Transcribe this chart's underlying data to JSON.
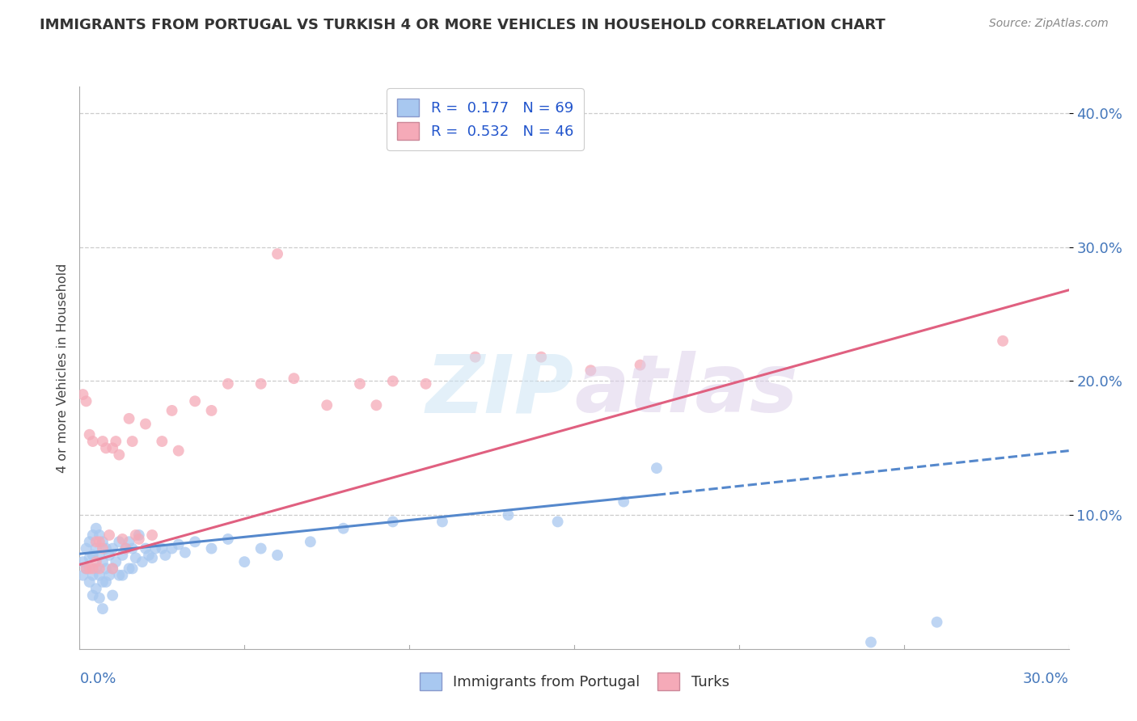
{
  "title": "IMMIGRANTS FROM PORTUGAL VS TURKISH 4 OR MORE VEHICLES IN HOUSEHOLD CORRELATION CHART",
  "source": "Source: ZipAtlas.com",
  "ylabel": "4 or more Vehicles in Household",
  "color_portugal": "#a8c8f0",
  "color_turks": "#f5aab8",
  "trend_portugal": "#5588cc",
  "trend_turks": "#e06080",
  "legend_r1": "R =  0.177   N = 69",
  "legend_r2": "R =  0.532   N = 46",
  "legend_label1": "Immigrants from Portugal",
  "legend_label2": "Turks",
  "xlim": [
    0.0,
    0.3
  ],
  "ylim": [
    0.0,
    0.42
  ],
  "trend_p_x0": 0.0,
  "trend_p_y0": 0.071,
  "trend_p_x1": 0.175,
  "trend_p_y1": 0.115,
  "trend_p_dash_x1": 0.3,
  "trend_p_dash_y1": 0.148,
  "trend_t_x0": 0.0,
  "trend_t_y0": 0.063,
  "trend_t_x1": 0.3,
  "trend_t_y1": 0.268,
  "portugal_x": [
    0.001,
    0.001,
    0.002,
    0.002,
    0.003,
    0.003,
    0.003,
    0.004,
    0.004,
    0.004,
    0.004,
    0.005,
    0.005,
    0.005,
    0.005,
    0.006,
    0.006,
    0.006,
    0.006,
    0.007,
    0.007,
    0.007,
    0.007,
    0.008,
    0.008,
    0.008,
    0.009,
    0.009,
    0.01,
    0.01,
    0.01,
    0.011,
    0.012,
    0.012,
    0.013,
    0.013,
    0.014,
    0.015,
    0.015,
    0.016,
    0.016,
    0.017,
    0.018,
    0.019,
    0.02,
    0.021,
    0.022,
    0.023,
    0.025,
    0.026,
    0.028,
    0.03,
    0.032,
    0.035,
    0.04,
    0.045,
    0.05,
    0.055,
    0.06,
    0.07,
    0.08,
    0.095,
    0.11,
    0.13,
    0.145,
    0.165,
    0.175,
    0.24,
    0.26
  ],
  "portugal_y": [
    0.065,
    0.055,
    0.075,
    0.06,
    0.08,
    0.068,
    0.05,
    0.085,
    0.07,
    0.055,
    0.04,
    0.09,
    0.075,
    0.06,
    0.045,
    0.085,
    0.07,
    0.055,
    0.038,
    0.08,
    0.065,
    0.05,
    0.03,
    0.075,
    0.06,
    0.05,
    0.07,
    0.055,
    0.075,
    0.06,
    0.04,
    0.065,
    0.08,
    0.055,
    0.07,
    0.055,
    0.075,
    0.08,
    0.06,
    0.075,
    0.06,
    0.068,
    0.085,
    0.065,
    0.075,
    0.07,
    0.068,
    0.075,
    0.075,
    0.07,
    0.075,
    0.078,
    0.072,
    0.08,
    0.075,
    0.082,
    0.065,
    0.075,
    0.07,
    0.08,
    0.09,
    0.095,
    0.095,
    0.1,
    0.095,
    0.11,
    0.135,
    0.005,
    0.02
  ],
  "turks_x": [
    0.001,
    0.002,
    0.002,
    0.003,
    0.003,
    0.004,
    0.004,
    0.005,
    0.005,
    0.006,
    0.006,
    0.007,
    0.007,
    0.008,
    0.009,
    0.01,
    0.01,
    0.011,
    0.012,
    0.013,
    0.014,
    0.015,
    0.016,
    0.017,
    0.018,
    0.02,
    0.022,
    0.025,
    0.028,
    0.03,
    0.035,
    0.04,
    0.045,
    0.055,
    0.06,
    0.065,
    0.075,
    0.085,
    0.09,
    0.095,
    0.105,
    0.12,
    0.14,
    0.155,
    0.17,
    0.28
  ],
  "turks_y": [
    0.19,
    0.185,
    0.06,
    0.16,
    0.06,
    0.155,
    0.06,
    0.08,
    0.065,
    0.08,
    0.06,
    0.155,
    0.075,
    0.15,
    0.085,
    0.06,
    0.15,
    0.155,
    0.145,
    0.082,
    0.075,
    0.172,
    0.155,
    0.085,
    0.082,
    0.168,
    0.085,
    0.155,
    0.178,
    0.148,
    0.185,
    0.178,
    0.198,
    0.198,
    0.295,
    0.202,
    0.182,
    0.198,
    0.182,
    0.2,
    0.198,
    0.218,
    0.218,
    0.208,
    0.212,
    0.23
  ]
}
